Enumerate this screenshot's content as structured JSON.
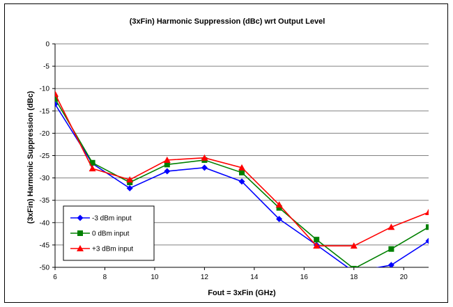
{
  "chart_data": {
    "type": "line",
    "title": "(3xFin) Harmonic Suppression (dBc) wrt Output Level",
    "xlabel": "Fout = 3xFin (GHz)",
    "ylabel": "(3xFin) Harmonic Suppression (dBc)",
    "xlim": [
      6,
      21
    ],
    "ylim": [
      -50,
      0
    ],
    "xticks": [
      6,
      8,
      10,
      12,
      14,
      16,
      18,
      20
    ],
    "yticks": [
      0,
      -5,
      -10,
      -15,
      -20,
      -25,
      -30,
      -35,
      -40,
      -45,
      -50
    ],
    "x": [
      6,
      7.5,
      9,
      10.5,
      12,
      13.5,
      15,
      16.5,
      18,
      19.5,
      21
    ],
    "grid": "horizontal",
    "legend_position": "bottom-left",
    "series": [
      {
        "name": "-3 dBm input",
        "color": "#0000ff",
        "marker": "diamond",
        "values": [
          -13.5,
          -26.8,
          -32.3,
          -28.5,
          -27.7,
          -30.8,
          -39.2,
          -45.0,
          -51.0,
          -49.5,
          -44.1
        ]
      },
      {
        "name": "0 dBm input",
        "color": "#008000",
        "marker": "square",
        "values": [
          -12.3,
          -26.6,
          -31.0,
          -27.0,
          -26.0,
          -28.8,
          -36.7,
          -43.8,
          -50.3,
          -45.9,
          -41.0
        ]
      },
      {
        "name": "+3 dBm input",
        "color": "#ff0000",
        "marker": "triangle",
        "values": [
          -11.2,
          -27.9,
          -30.4,
          -26.0,
          -25.5,
          -27.7,
          -36.0,
          -45.2,
          -45.2,
          -41.0,
          -37.7
        ]
      }
    ]
  }
}
